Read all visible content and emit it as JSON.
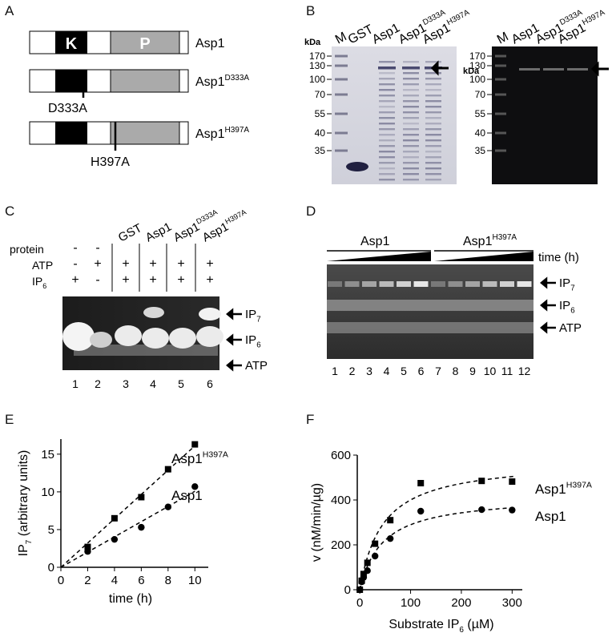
{
  "panels": {
    "A": {
      "label": "A",
      "constructs": [
        {
          "name": "Asp1",
          "name_sup": "",
          "k_label": "K",
          "p_label": "P",
          "mutation": ""
        },
        {
          "name": "Asp1",
          "name_sup": "D333A",
          "k_label": "",
          "p_label": "",
          "mutation": "D333A"
        },
        {
          "name": "Asp1",
          "name_sup": "H397A",
          "k_label": "",
          "p_label": "",
          "mutation": "H397A"
        }
      ]
    },
    "B": {
      "label": "B",
      "left_gel": {
        "kda_label": "kDa",
        "markers": [
          "170",
          "130",
          "100",
          "70",
          "55",
          "40",
          "35"
        ],
        "lanes": [
          {
            "label": "M",
            "sup": ""
          },
          {
            "label": "GST",
            "sup": ""
          },
          {
            "label": "Asp1",
            "sup": ""
          },
          {
            "label": "Asp1",
            "sup": "D333A"
          },
          {
            "label": "Asp1",
            "sup": "H397A"
          }
        ]
      },
      "right_gel": {
        "kda_label": "kDa",
        "markers": [
          "170",
          "130",
          "100",
          "70",
          "55",
          "40",
          "35"
        ],
        "lanes": [
          {
            "label": "M",
            "sup": ""
          },
          {
            "label": "Asp1",
            "sup": ""
          },
          {
            "label": "Asp1",
            "sup": "D333A"
          },
          {
            "label": "Asp1",
            "sup": "H397A"
          }
        ]
      }
    },
    "C": {
      "label": "C",
      "row_labels": [
        "protein",
        "ATP",
        "IP",
        "6"
      ],
      "lane_headers": [
        {
          "label": "",
          "sup": ""
        },
        {
          "label": "",
          "sup": ""
        },
        {
          "label": "GST",
          "sup": ""
        },
        {
          "label": "Asp1",
          "sup": ""
        },
        {
          "label": "Asp1",
          "sup": "D333A"
        },
        {
          "label": "Asp1",
          "sup": "H397A"
        }
      ],
      "protein_row": [
        "-",
        "-",
        "",
        "",
        "",
        ""
      ],
      "atp_row": [
        "-",
        "+",
        "+",
        "+",
        "+",
        "+"
      ],
      "ip6_row": [
        "+",
        "-",
        "+",
        "+",
        "+",
        "+"
      ],
      "lane_numbers": [
        "1",
        "2",
        "3",
        "4",
        "5",
        "6"
      ],
      "bands": [
        {
          "name": "IP",
          "sub": "7"
        },
        {
          "name": "IP",
          "sub": "6"
        },
        {
          "name": "ATP",
          "sub": ""
        }
      ]
    },
    "D": {
      "label": "D",
      "groups": [
        {
          "label": "Asp1",
          "sup": ""
        },
        {
          "label": "Asp1",
          "sup": "H397A"
        }
      ],
      "time_label": "time (h)",
      "lane_numbers": [
        "1",
        "2",
        "3",
        "4",
        "5",
        "6",
        "7",
        "8",
        "9",
        "10",
        "11",
        "12"
      ],
      "bands": [
        {
          "name": "IP",
          "sub": "7"
        },
        {
          "name": "IP",
          "sub": "6"
        },
        {
          "name": "ATP",
          "sub": ""
        }
      ]
    },
    "E": {
      "label": "E"
    },
    "F": {
      "label": "F"
    }
  },
  "chart_data": [
    {
      "panel": "E",
      "type": "scatter",
      "xlabel": "time (h)",
      "ylabel": "IP",
      "ylabel_sub": "7",
      "ylabel_suffix": " (arbitrary units)",
      "xlim": [
        0,
        11
      ],
      "ylim": [
        0,
        17
      ],
      "xticks": [
        0,
        2,
        4,
        6,
        8,
        10
      ],
      "yticks": [
        0,
        5,
        10,
        15
      ],
      "series": [
        {
          "name": "Asp1",
          "name_sup": "H397A",
          "marker": "square",
          "x": [
            2,
            4,
            6,
            8,
            10
          ],
          "y": [
            2.7,
            6.5,
            9.3,
            13.0,
            16.3
          ]
        },
        {
          "name": "Asp1",
          "name_sup": "",
          "marker": "circle",
          "x": [
            2,
            4,
            6,
            8,
            10
          ],
          "y": [
            2.1,
            3.7,
            5.3,
            8.0,
            10.7
          ]
        }
      ],
      "fit": "linear (dashed)"
    },
    {
      "panel": "F",
      "type": "scatter",
      "xlabel": "Substrate IP",
      "xlabel_sub": "6",
      "xlabel_suffix": " (µM)",
      "ylabel": "v (nM/min/µg)",
      "xlim": [
        -5,
        320
      ],
      "ylim": [
        0,
        600
      ],
      "xticks": [
        0,
        100,
        200,
        300
      ],
      "yticks": [
        0,
        200,
        400,
        600
      ],
      "series": [
        {
          "name": "Asp1",
          "name_sup": "H397A",
          "marker": "square",
          "x": [
            0,
            3.75,
            7.5,
            15,
            30,
            60,
            120,
            240,
            300
          ],
          "y": [
            0,
            40,
            70,
            120,
            205,
            310,
            475,
            485,
            482
          ],
          "fit": {
            "vmax": 580,
            "km": 45
          }
        },
        {
          "name": "Asp1",
          "name_sup": "",
          "marker": "circle",
          "x": [
            0,
            3.75,
            7.5,
            15,
            30,
            60,
            120,
            240,
            300
          ],
          "y": [
            0,
            35,
            55,
            85,
            150,
            228,
            350,
            357,
            355
          ],
          "fit": {
            "vmax": 420,
            "km": 45
          }
        }
      ],
      "fit": "Michaelis-Menten (dashed)"
    }
  ]
}
